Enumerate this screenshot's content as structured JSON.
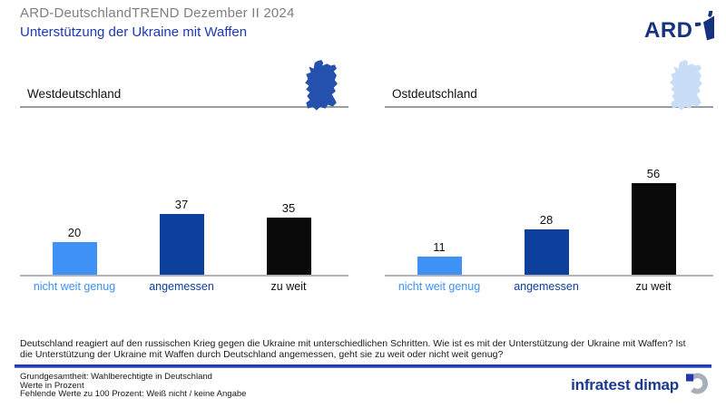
{
  "header": {
    "title": "ARD-DeutschlandTREND Dezember II 2024",
    "subtitle": "Unterstützung der Ukraine mit Waffen",
    "ard_logo_text": "ARD"
  },
  "colors": {
    "accent_blue": "#1d39b4",
    "bar_light_blue": "#3e91f5",
    "bar_dark_blue": "#0d3f9c",
    "bar_black": "#0a0a0a",
    "title_gray": "#7f7f7f",
    "map_dark_blue": "#2450ae",
    "map_light_blue": "#c9ddf6"
  },
  "chart_data": {
    "type": "bar",
    "categories": [
      "nicht weit genug",
      "angemessen",
      "zu weit"
    ],
    "series": [
      {
        "name": "Westdeutschland",
        "values": [
          20,
          37,
          35
        ]
      },
      {
        "name": "Ostdeutschland",
        "values": [
          11,
          28,
          56
        ]
      }
    ],
    "title": "Unterstützung der Ukraine mit Waffen",
    "unit": "Prozent",
    "ylim": [
      0,
      60
    ],
    "bar_colors": [
      "#3e91f5",
      "#0d3f9c",
      "#0a0a0a"
    ],
    "category_label_colors": [
      "#3e91f5",
      "#0d3f9c",
      "#111111"
    ],
    "value_labels": true,
    "grid": false,
    "legend": "none"
  },
  "panels": [
    {
      "label": "Westdeutschland",
      "region": "west"
    },
    {
      "label": "Ostdeutschland",
      "region": "ost"
    }
  ],
  "footer": {
    "question": "Deutschland reagiert auf den russischen Krieg gegen die Ukraine mit unterschiedlichen Schritten. Wie ist es mit der Unterstützung der Ukraine mit Waffen? Ist die Unterstützung der Ukraine mit Waffen durch Deutschland angemessen, geht sie zu weit oder nicht weit genug?",
    "notes": [
      "Grundgesamtheit: Wahlberechtigte in Deutschland",
      "Werte in Prozent",
      "Fehlende Werte zu 100 Prozent: Weiß nicht / keine Angabe"
    ],
    "source_logo_text": "infratest dimap"
  }
}
